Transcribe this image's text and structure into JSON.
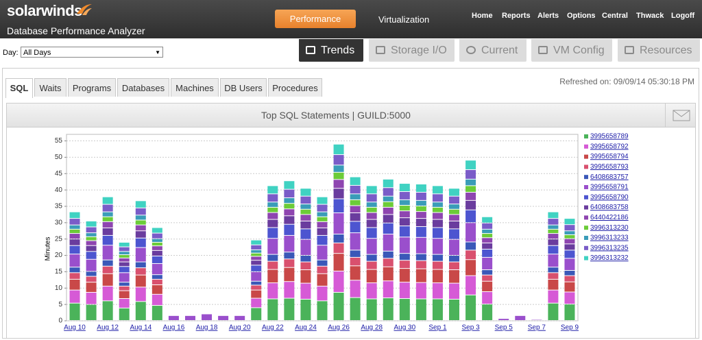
{
  "header": {
    "logo": "solarwinds",
    "product": "Database Performance Analyzer",
    "buttons": [
      "Performance",
      "Virtualization"
    ],
    "links": [
      "Home",
      "Reports",
      "Alerts",
      "Options",
      "Central",
      "Thwack",
      "Logoff"
    ]
  },
  "toolbar": {
    "day_label": "Day:",
    "day_value": "All Days",
    "tabs": [
      "Trends",
      "Storage I/O",
      "Current",
      "VM Config",
      "Resources"
    ]
  },
  "subtabs": [
    "SQL",
    "Waits",
    "Programs",
    "Databases",
    "Machines",
    "DB Users",
    "Procedures"
  ],
  "refreshed": "Refreshed on: 09/09/14 05:30:18 PM",
  "chart_data": {
    "type": "stacked_bar",
    "title": "Top SQL Statements | GUILD:5000",
    "y_label": "Minutes",
    "categories": [
      "Aug 10",
      null,
      "Aug 12",
      null,
      "Aug 14",
      null,
      "Aug 16",
      null,
      "Aug 18",
      null,
      "Aug 20",
      null,
      "Aug 22",
      null,
      "Aug 24",
      null,
      "Aug 26",
      null,
      "Aug 28",
      null,
      "Aug 30",
      null,
      "Sep 1",
      null,
      "Sep 3",
      null,
      "Sep 5",
      null,
      "Sep 7",
      null,
      "Sep 9"
    ],
    "ylim": [
      0,
      57
    ],
    "yticks": [
      0,
      5,
      10,
      15,
      20,
      25,
      30,
      35,
      40,
      45,
      50,
      55
    ],
    "grid": true,
    "series": [
      {
        "name": "3995658789",
        "color": "#4bb35a",
        "values": [
          5.3,
          4.9,
          6,
          3.8,
          5.8,
          4.6,
          0,
          0,
          0,
          0,
          0,
          3.9,
          6.6,
          6.8,
          6.5,
          6,
          8.6,
          7,
          6.6,
          6.9,
          6.7,
          6.6,
          6.6,
          6.5,
          7.8,
          5,
          0,
          0,
          0,
          5.3,
          5
        ]
      },
      {
        "name": "3995658792",
        "color": "#d65ad6",
        "values": [
          4,
          3.7,
          4.5,
          2.9,
          4.4,
          3.4,
          0,
          0,
          0,
          0,
          0,
          2.9,
          4.9,
          5.1,
          4.9,
          4.5,
          6.5,
          5.3,
          4.9,
          5.2,
          5,
          5,
          4.9,
          4.9,
          5.9,
          3.8,
          0,
          0,
          0,
          4,
          3.7
        ]
      },
      {
        "name": "3995658794",
        "color": "#c94848",
        "values": [
          3.3,
          3.1,
          3.8,
          2.4,
          3.7,
          2.9,
          0,
          0,
          0,
          0,
          0,
          2.5,
          4.1,
          4.3,
          4.1,
          3.8,
          5.4,
          4.4,
          4.1,
          4.3,
          4.2,
          4.2,
          4.1,
          4.1,
          4.9,
          3.2,
          0,
          0,
          0,
          3.3,
          3.1
        ]
      },
      {
        "name": "3995658793",
        "color": "#d9506e",
        "values": [
          2,
          1.8,
          2.3,
          1.4,
          2.2,
          1.7,
          0,
          0,
          0,
          0,
          0,
          1.5,
          2.5,
          2.6,
          2.4,
          2.3,
          3.2,
          2.6,
          2.5,
          2.6,
          2.5,
          2.5,
          2.5,
          2.4,
          2.9,
          1.9,
          0,
          0,
          0,
          2,
          1.9
        ]
      },
      {
        "name": "6408683757",
        "color": "#3a58b8",
        "values": [
          1.7,
          1.5,
          1.9,
          1.2,
          1.8,
          1.4,
          0,
          0,
          0,
          0,
          0,
          1.2,
          2.1,
          2.1,
          2,
          1.9,
          2.7,
          2.2,
          2.1,
          2.2,
          2.1,
          2.1,
          2.1,
          2,
          2.5,
          1.6,
          0,
          0,
          0,
          1.7,
          1.6
        ]
      },
      {
        "name": "3995658791",
        "color": "#9a4fcc",
        "values": [
          4,
          3.7,
          4.5,
          2.9,
          4.4,
          3.4,
          1.5,
          1.5,
          2,
          1.5,
          1.5,
          2.9,
          4.9,
          5.1,
          4.9,
          4.5,
          6.5,
          5.3,
          4.9,
          5.2,
          5,
          5,
          4.9,
          4.9,
          5.9,
          3.8,
          0.6,
          1.5,
          0.3,
          4,
          3.7
        ]
      },
      {
        "name": "3995658790",
        "color": "#4d55d0",
        "values": [
          2.6,
          2.4,
          3,
          1.9,
          2.9,
          2.3,
          0,
          0,
          0,
          0,
          0,
          2,
          3.3,
          3.4,
          3.2,
          3,
          4.3,
          3.5,
          3.3,
          3.4,
          3.4,
          3.3,
          3.3,
          3.2,
          3.9,
          2.5,
          0,
          0,
          0,
          2.6,
          2.5
        ]
      },
      {
        "name": "6408683758",
        "color": "#6a3c9e",
        "values": [
          2,
          1.8,
          2.3,
          1.4,
          2.2,
          1.7,
          0,
          0,
          0,
          0,
          0,
          1.5,
          2.5,
          2.6,
          2.4,
          2.3,
          3.2,
          2.6,
          2.5,
          2.6,
          2.5,
          2.5,
          2.5,
          2.4,
          2.9,
          1.9,
          0,
          0,
          0,
          2,
          1.9
        ]
      },
      {
        "name": "6440422186",
        "color": "#8e45b0",
        "values": [
          1.7,
          1.5,
          1.9,
          1.2,
          1.8,
          1.4,
          0,
          0,
          0,
          0,
          0,
          1.2,
          2.1,
          2.1,
          2,
          1.9,
          2.7,
          2.2,
          2.1,
          2.2,
          2.1,
          2.1,
          2.1,
          2,
          2.5,
          1.6,
          0,
          0,
          0,
          1.7,
          1.6
        ]
      },
      {
        "name": "3996313230",
        "color": "#6ccc38",
        "values": [
          1.3,
          1.2,
          1.5,
          1,
          1.5,
          1.1,
          0,
          0,
          0,
          0,
          0,
          1,
          1.6,
          1.7,
          1.6,
          1.5,
          2.2,
          1.8,
          1.6,
          1.7,
          1.7,
          1.7,
          1.6,
          1.6,
          2,
          1.3,
          0,
          0,
          0,
          1.3,
          1.2
        ]
      },
      {
        "name": "3996313233",
        "color": "#3a9cb8",
        "values": [
          1.3,
          1.2,
          1.5,
          1,
          1.5,
          1.1,
          0,
          0,
          0,
          0,
          0,
          1,
          1.6,
          1.7,
          1.6,
          1.5,
          2.2,
          1.8,
          1.6,
          1.7,
          1.7,
          1.7,
          1.6,
          1.6,
          2,
          1.3,
          0,
          0,
          0,
          1.3,
          1.2
        ]
      },
      {
        "name": "3996313235",
        "color": "#7a5cc8",
        "values": [
          2,
          1.8,
          2.3,
          1.4,
          2.2,
          1.7,
          0,
          0,
          0,
          0,
          0,
          1.5,
          2.5,
          2.6,
          2.4,
          2.3,
          3.2,
          2.6,
          2.5,
          2.6,
          2.5,
          2.5,
          2.5,
          2.4,
          2.9,
          1.9,
          0,
          0,
          0,
          2,
          1.9
        ]
      },
      {
        "name": "3996313232",
        "color": "#40d2c2",
        "values": [
          2,
          1.8,
          2.3,
          1.4,
          2.2,
          1.7,
          0,
          0,
          0,
          0,
          0,
          1.5,
          2.5,
          2.6,
          2.4,
          2.3,
          3.2,
          2.6,
          2.5,
          2.6,
          2.5,
          2.5,
          2.5,
          2.4,
          2.9,
          1.9,
          0,
          0,
          0,
          2,
          1.9
        ]
      }
    ]
  }
}
